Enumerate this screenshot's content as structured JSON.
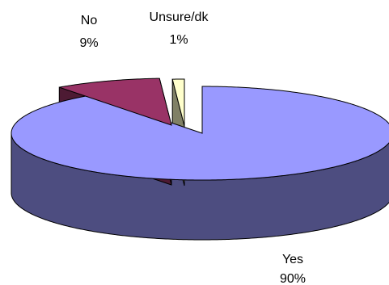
{
  "chart_data": {
    "type": "pie",
    "style": "3d-exploded",
    "title": "",
    "slices": [
      {
        "label": "Yes",
        "percent_label": "90%",
        "value": 90,
        "color": "#9999ff",
        "side_color": "#4d4d80"
      },
      {
        "label": "No",
        "percent_label": "9%",
        "value": 9,
        "color": "#993366",
        "side_color": "#4d1a33"
      },
      {
        "label": "Unsure/dk",
        "percent_label": "1%",
        "value": 1,
        "color": "#ffffcc",
        "side_color": "#808066"
      }
    ]
  }
}
